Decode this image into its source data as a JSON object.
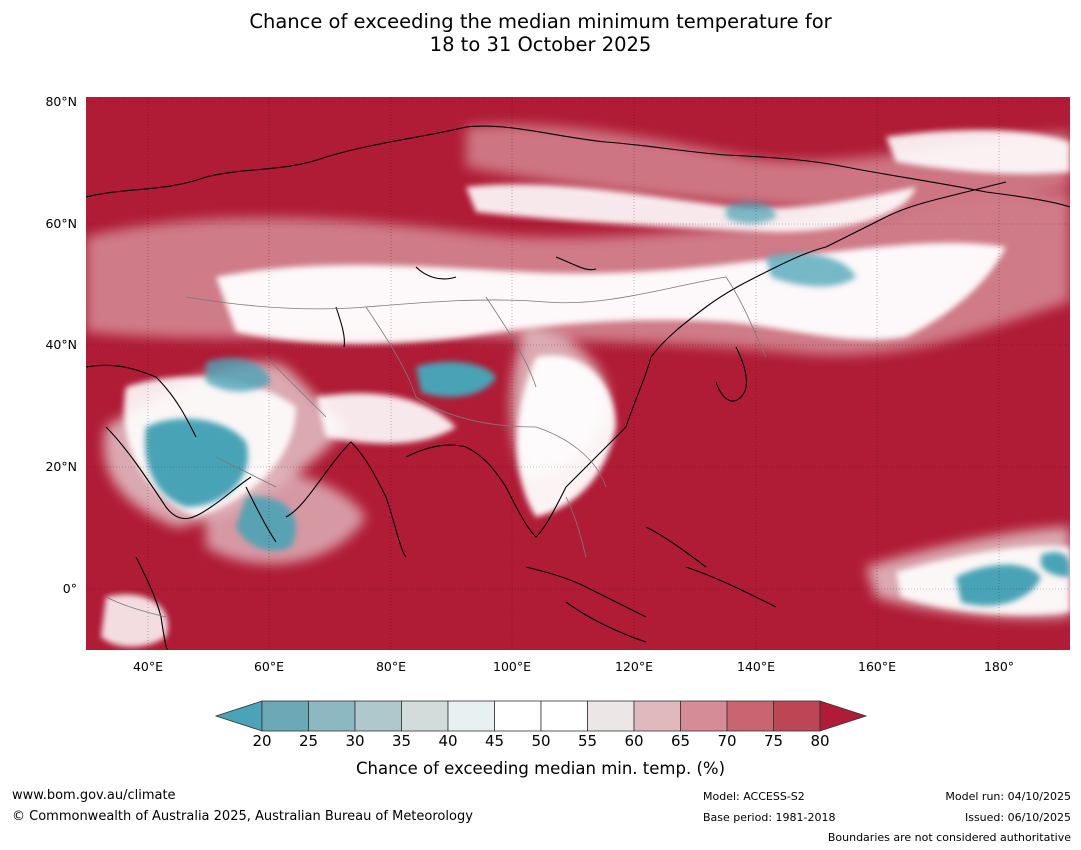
{
  "title": {
    "line1": "Chance of exceeding the median minimum temperature for",
    "line2": "18 to 31 October 2025"
  },
  "map": {
    "latitude_labels": [
      "80°N",
      "60°N",
      "40°N",
      "20°N",
      "0°"
    ],
    "longitude_labels": [
      "40°E",
      "60°E",
      "80°E",
      "100°E",
      "120°E",
      "140°E",
      "160°E",
      "180°"
    ],
    "colors": {
      "above_80": "#b01c36",
      "below_20": "#4aa3b6",
      "mid": "#ffffff",
      "coast": "#000000",
      "borders": "#7a7a7a"
    }
  },
  "colorbar": {
    "ticks": [
      "20",
      "25",
      "30",
      "35",
      "40",
      "45",
      "50",
      "55",
      "60",
      "65",
      "70",
      "75",
      "80"
    ],
    "colors": [
      "#4aa3b6",
      "#6ca9b6",
      "#8bb8c1",
      "#aec8cc",
      "#d3dbdb",
      "#e9f0f1",
      "#ffffff",
      "#ffffff",
      "#ece6e7",
      "#e0b9bf",
      "#d58c96",
      "#c96570",
      "#bd4655",
      "#b01c36"
    ],
    "label": "Chance of exceeding median min. temp. (%)"
  },
  "footer": {
    "website": "www.bom.gov.au/climate",
    "copyright": "© Commonwealth of Australia 2025, Australian Bureau of Meteorology",
    "model": "Model: ACCESS-S2",
    "base_period": "Base period: 1981-2018",
    "model_run": "Model run: 04/10/2025",
    "issued": "Issued: 06/10/2025",
    "disclaimer": "Boundaries are not considered authoritative"
  }
}
